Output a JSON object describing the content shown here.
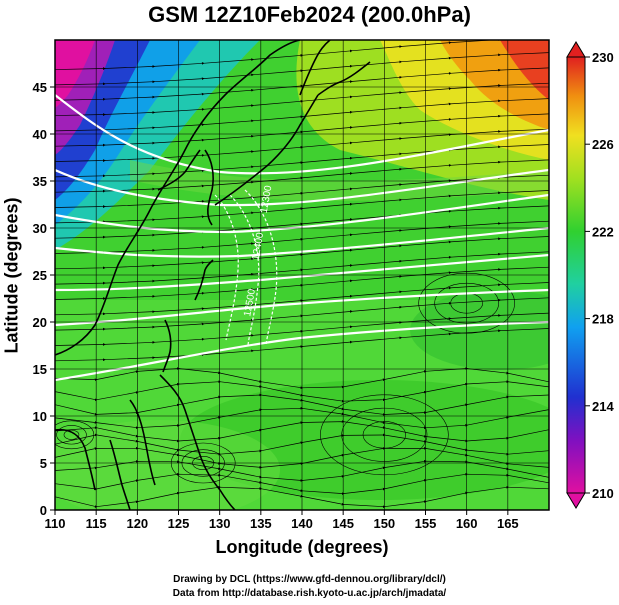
{
  "title": "GSM 12Z10Feb2024 (200.0hPa)",
  "credits": {
    "line1": "Drawing by DCL (https://www.gfd-dennou.org/library/dcl/)",
    "line2": "Data from http://database.rish.kyoto-u.ac.jp/arch/jmadata/"
  },
  "chart_data": {
    "type": "heatmap",
    "title": "GSM 12Z10Feb2024 (200.0hPa)",
    "xlabel": "Longitude (degrees)",
    "ylabel": "Latitude  (degrees)",
    "xlim": [
      110,
      170
    ],
    "ylim": [
      0,
      50
    ],
    "x_ticks": [
      110,
      115,
      120,
      125,
      130,
      135,
      140,
      145,
      150,
      155,
      160,
      165
    ],
    "y_ticks": [
      0,
      5,
      10,
      15,
      20,
      25,
      30,
      35,
      40,
      45
    ],
    "grid": true,
    "colorbar": {
      "label_unit": "",
      "min": 210,
      "max": 230,
      "ticks": [
        210,
        214,
        218,
        222,
        226,
        230
      ],
      "colors": [
        "#e010a0",
        "#2020d0",
        "#10a0f0",
        "#20d0a0",
        "#30d030",
        "#90e020",
        "#f0e020",
        "#f09010",
        "#e02020"
      ]
    },
    "temperature_samples": [
      {
        "lon": 112,
        "lat": 47,
        "value": 212
      },
      {
        "lon": 113,
        "lat": 38,
        "value": 215
      },
      {
        "lon": 125,
        "lat": 45,
        "value": 219
      },
      {
        "lon": 140,
        "lat": 45,
        "value": 221
      },
      {
        "lon": 160,
        "lat": 48,
        "value": 228
      },
      {
        "lon": 155,
        "lat": 40,
        "value": 225
      },
      {
        "lon": 140,
        "lat": 30,
        "value": 222
      },
      {
        "lon": 130,
        "lat": 15,
        "value": 221
      },
      {
        "lon": 120,
        "lat": 5,
        "value": 223
      },
      {
        "lon": 160,
        "lat": 10,
        "value": 222
      }
    ],
    "contour_labels": [
      "12300",
      "12400",
      "12500"
    ],
    "streamlines": "wind streamlines, westerly flow north of 15N, easterly flow south of 15N",
    "overlays": [
      "coastlines",
      "jet-stream isotachs (white)"
    ]
  }
}
